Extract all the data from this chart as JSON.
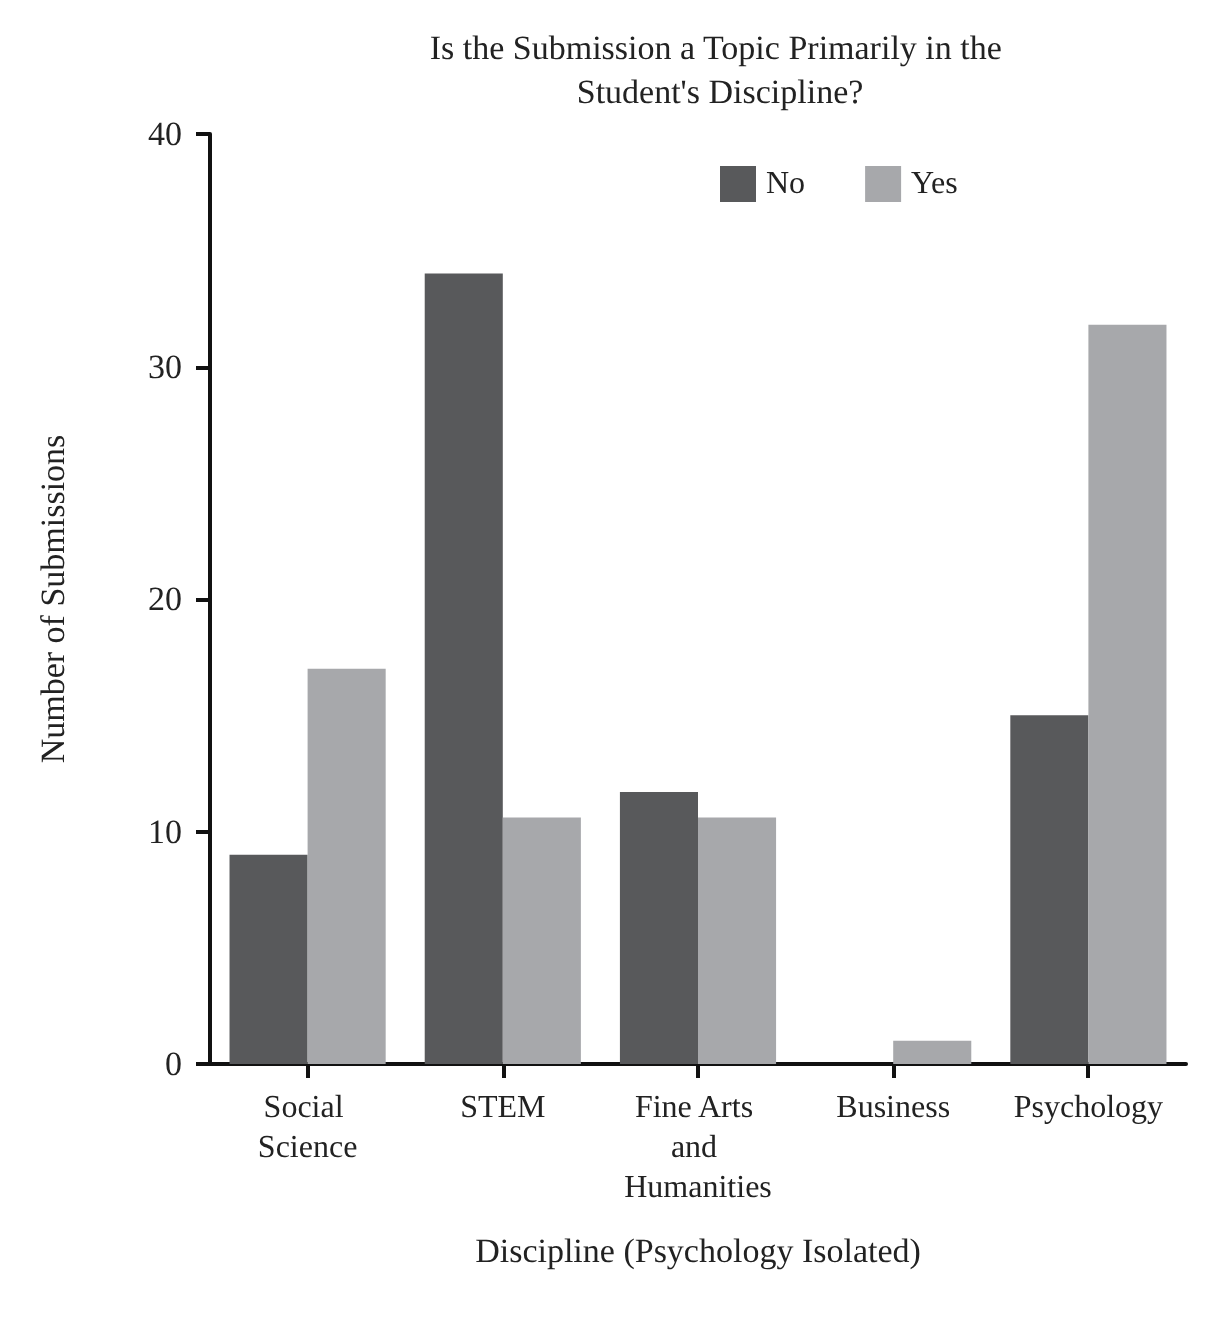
{
  "chart_data": {
    "type": "bar",
    "title": "Is the Submission a Topic Primarily in the Student's Discipline?",
    "xlabel": "Discipline (Psychology Isolated)",
    "ylabel": "Number of Submissions",
    "categories": [
      "Social Science",
      "STEM",
      "Fine Arts and Humanities",
      "Business",
      "Psychology"
    ],
    "series": [
      {
        "name": "No",
        "color": "#58595b",
        "values": [
          9,
          34,
          11.7,
          0,
          15
        ]
      },
      {
        "name": "Yes",
        "color": "#a7a8ab",
        "values": [
          17,
          10.6,
          10.6,
          1,
          31.8
        ]
      }
    ],
    "ylim": [
      0,
      40
    ],
    "yticks": [
      0,
      10,
      20,
      30,
      40
    ],
    "grid": false,
    "legend": "top"
  }
}
